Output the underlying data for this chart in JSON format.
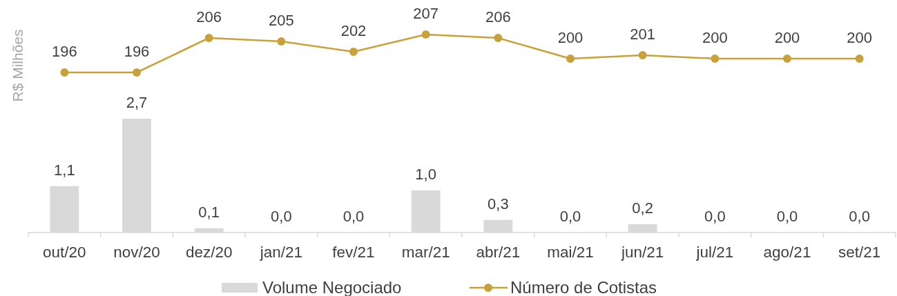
{
  "chart_data": [
    {
      "type": "line",
      "legend": "bottom",
      "marker": "circle",
      "line_style": "solid",
      "categories": [
        null,
        null,
        null,
        null,
        null,
        null,
        null,
        null,
        null,
        null,
        null,
        null
      ],
      "series": [
        {
          "name": "Número de Cotistas",
          "color": "#c8a13a",
          "values": [
            196,
            196,
            206,
            205,
            202,
            207,
            206,
            200,
            201,
            200,
            200,
            200
          ],
          "value_labels": [
            "196",
            "196",
            "206",
            "205",
            "202",
            "207",
            "206",
            "200",
            "201",
            "200",
            "200",
            "200"
          ]
        }
      ]
    },
    {
      "type": "bar",
      "ylabel": "R$ Milhões",
      "legend": "bottom",
      "tick_labels": "x",
      "categories": [
        "out/20",
        "nov/20",
        "dez/20",
        "jan/21",
        "fev/21",
        "mar/21",
        "abr/21",
        "mai/21",
        "jun/21",
        "jul/21",
        "ago/21",
        "set/21"
      ],
      "series": [
        {
          "name": "Volume Negociado",
          "color": "#d9d9d9",
          "values": [
            1.1,
            2.7,
            0.1,
            0.0,
            0.0,
            1.0,
            0.3,
            0.0,
            0.2,
            0.0,
            0.0,
            0.0
          ],
          "value_labels": [
            "1,1",
            "2,7",
            "0,1",
            "0,0",
            "0,0",
            "1,0",
            "0,3",
            "0,0",
            "0,2",
            "0,0",
            "0,0",
            "0,0"
          ]
        }
      ]
    }
  ]
}
